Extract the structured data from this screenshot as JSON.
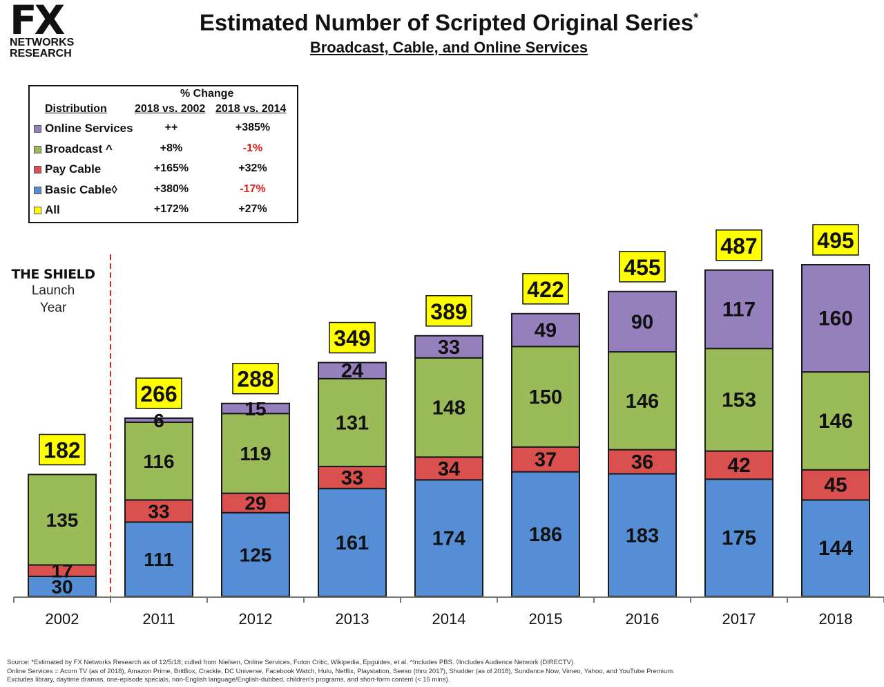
{
  "logo": {
    "mark": "FX",
    "line1": "NETWORKS",
    "line2": "RESEARCH"
  },
  "header": {
    "title": "Estimated Number of Scripted Original Series",
    "title_mark": "*",
    "subtitle": "Broadcast, Cable, and Online Services"
  },
  "legend": {
    "pct_change": "% Change",
    "col_distribution": "Distribution",
    "col_a": "2018 vs. 2002",
    "col_b": "2018 vs. 2014",
    "rows": [
      {
        "label": "Online Services",
        "a": "++",
        "b": "+385%",
        "color": "#9580bd",
        "b_negative": false
      },
      {
        "label": "Broadcast ^",
        "a": "+8%",
        "b": "-1%",
        "color": "#9bbb59",
        "b_negative": true
      },
      {
        "label": "Pay Cable",
        "a": "+165%",
        "b": "+32%",
        "color": "#d9504f",
        "b_negative": false
      },
      {
        "label": "Basic Cable◊",
        "a": "+380%",
        "b": "-17%",
        "color": "#558ed5",
        "b_negative": true
      },
      {
        "label": "All",
        "a": "+172%",
        "b": "+27%",
        "color": "#ffff00",
        "b_negative": false
      }
    ]
  },
  "annotation": {
    "title": "THE SHIELD",
    "line1": "Launch",
    "line2": "Year"
  },
  "chart_data": {
    "type": "bar",
    "stacked": true,
    "categories": [
      "2002",
      "2011",
      "2012",
      "2013",
      "2014",
      "2015",
      "2016",
      "2017",
      "2018"
    ],
    "series": [
      {
        "name": "Basic Cable",
        "color": "#558ed5",
        "values": [
          30,
          111,
          125,
          161,
          174,
          186,
          183,
          175,
          144
        ]
      },
      {
        "name": "Pay Cable",
        "color": "#d9504f",
        "values": [
          17,
          33,
          29,
          33,
          34,
          37,
          36,
          42,
          45
        ]
      },
      {
        "name": "Broadcast",
        "color": "#9bbb59",
        "values": [
          135,
          116,
          119,
          131,
          148,
          150,
          146,
          153,
          146
        ]
      },
      {
        "name": "Online Services",
        "color": "#9580bd",
        "values": [
          null,
          6,
          15,
          24,
          33,
          49,
          90,
          117,
          160
        ]
      }
    ],
    "totals": [
      182,
      266,
      288,
      349,
      389,
      422,
      455,
      487,
      495
    ],
    "total_box_color": "#ffff00",
    "ylim": [
      0,
      495
    ],
    "grid": false,
    "legend": "top-left"
  },
  "footer": {
    "line1": "Source:  *Estimated by FX Networks Research as of 12/5/18; culled from Nielsen, Online Services, Futon Critic, Wikipedia, Epguides, et al.  ^Includes PBS.  ◊Includes Audience Network (DIRECTV).",
    "line2": "Online Services = Acorn TV (as of 2018), Amazon Prime, BritBox, Crackle, DC Universe, Facebook Watch, Hulu, Netflix, Playstation, Seeso (thru 2017), Shudder (as of 2018), Sundance Now, Vimeo, Yahoo, and YouTube Premium.",
    "line3": "Excludes library, daytime dramas, one-episode specials, non-English language/English-dubbed, children's programs, and short-form content (< 15 mins)."
  }
}
